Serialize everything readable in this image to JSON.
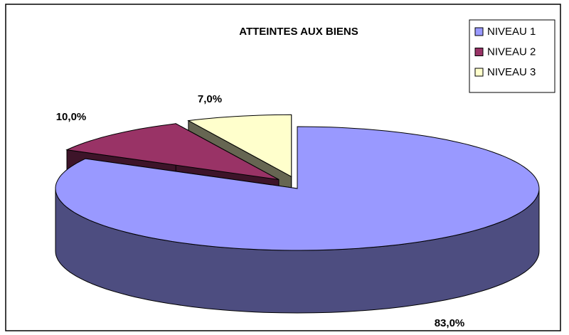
{
  "chart_data": {
    "type": "pie",
    "title": "ATTEINTES AUX BIENS",
    "categories": [
      "NIVEAU 1",
      "NIVEAU 2",
      "NIVEAU 3"
    ],
    "values": [
      83,
      10,
      7
    ],
    "value_labels": [
      "83,0%",
      "10,0%",
      "7,0%"
    ],
    "colors": [
      "#9999ff",
      "#993366",
      "#ffffcc"
    ],
    "legend": "top-right"
  }
}
